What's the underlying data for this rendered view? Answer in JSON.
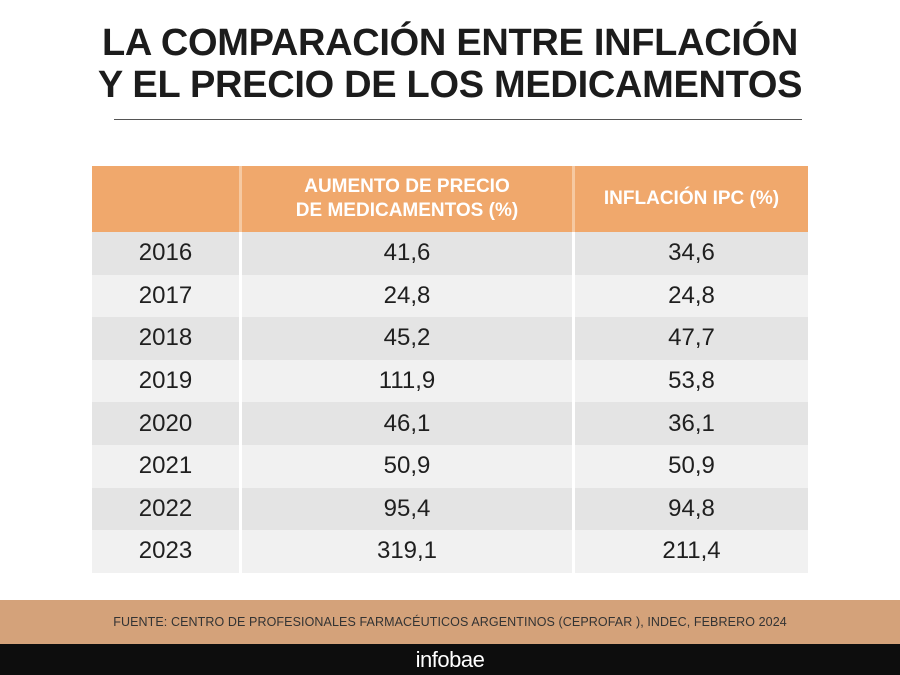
{
  "title": {
    "line1": "LA COMPARACIÓN ENTRE INFLACIÓN",
    "line2": "Y EL PRECIO DE LOS MEDICAMENTOS"
  },
  "chart_data": {
    "type": "table",
    "columns": [
      "",
      "AUMENTO DE PRECIO DE MEDICAMENTOS (%)",
      "INFLACIÓN IPC (%)"
    ],
    "column_lines": {
      "medicamentos": [
        "AUMENTO DE PRECIO",
        "DE MEDICAMENTOS (%)"
      ],
      "ipc": [
        "INFLACIÓN IPC (%)"
      ]
    },
    "rows": [
      {
        "year": "2016",
        "medicamentos": "41,6",
        "ipc": "34,6"
      },
      {
        "year": "2017",
        "medicamentos": "24,8",
        "ipc": "24,8"
      },
      {
        "year": "2018",
        "medicamentos": "45,2",
        "ipc": "47,7"
      },
      {
        "year": "2019",
        "medicamentos": "111,9",
        "ipc": "53,8"
      },
      {
        "year": "2020",
        "medicamentos": "46,1",
        "ipc": "36,1"
      },
      {
        "year": "2021",
        "medicamentos": "50,9",
        "ipc": "50,9"
      },
      {
        "year": "2022",
        "medicamentos": "95,4",
        "ipc": "94,8"
      },
      {
        "year": "2023",
        "medicamentos": "319,1",
        "ipc": "211,4"
      }
    ]
  },
  "source": "FUENTE:  CENTRO DE PROFESIONALES FARMACÉUTICOS ARGENTINOS (CEPROFAR ), INDEC, FEBRERO 2024",
  "logo": "infobae",
  "colors": {
    "header": "#f0a86c",
    "row_odd": "#e4e4e4",
    "row_even": "#f1f1f1",
    "source_band": "#d4a27a",
    "logo_band": "#0d0d0d"
  }
}
